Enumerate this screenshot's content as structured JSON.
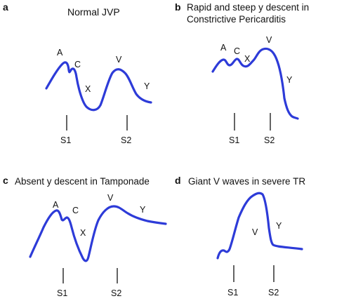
{
  "panels": [
    {
      "tag": "a",
      "title_lines": [
        "Normal JVP"
      ],
      "wave_labels": {
        "a": "A",
        "c": "C",
        "x": "X",
        "v": "V",
        "y": "Y"
      },
      "markers": {
        "s1": "S1",
        "s2": "S2"
      }
    },
    {
      "tag": "b",
      "title_lines": [
        "Rapid and steep y descent in",
        "Constrictive Pericarditis"
      ],
      "wave_labels": {
        "a": "A",
        "c": "C",
        "x": "X",
        "v": "V",
        "y": "Y"
      },
      "markers": {
        "s1": "S1",
        "s2": "S2"
      }
    },
    {
      "tag": "c",
      "title_lines": [
        "Absent y descent in Tamponade"
      ],
      "wave_labels": {
        "a": "A",
        "c": "C",
        "x": "X",
        "v": "V",
        "y": "Y"
      },
      "markers": {
        "s1": "S1",
        "s2": "S2"
      }
    },
    {
      "tag": "d",
      "title_lines": [
        "Giant V waves in severe TR"
      ],
      "wave_labels": {
        "v": "V",
        "y": "Y"
      },
      "markers": {
        "s1": "S1",
        "s2": "S2"
      }
    }
  ],
  "colors": {
    "waveform": "#2d3bd8",
    "text": "#111111"
  }
}
